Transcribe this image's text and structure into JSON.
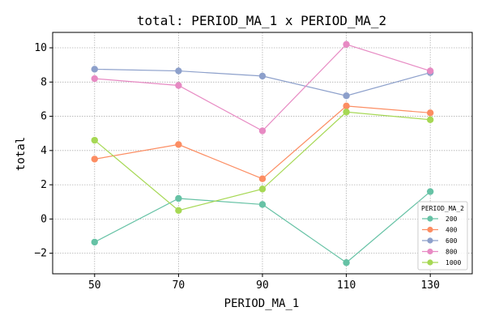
{
  "chart_data": {
    "type": "line",
    "title": "total: PERIOD_MA_1 x PERIOD_MA_2",
    "xlabel": "PERIOD_MA_1",
    "ylabel": "total",
    "x": [
      50,
      70,
      90,
      110,
      130
    ],
    "x_tick_labels": [
      "50",
      "70",
      "90",
      "110",
      "130"
    ],
    "xlim": [
      40,
      140
    ],
    "ylim": [
      -3.2,
      10.9
    ],
    "y_ticks": [
      -2,
      0,
      2,
      4,
      6,
      8,
      10
    ],
    "y_tick_labels": [
      "−2",
      "0",
      "2",
      "4",
      "6",
      "8",
      "10"
    ],
    "grid": true,
    "legend_title": "PERIOD_MA_2",
    "legend_position": "bottom-right",
    "series": [
      {
        "name": "200",
        "color": "#66c2a5",
        "values": [
          -1.35,
          1.2,
          0.85,
          -2.55,
          1.6
        ]
      },
      {
        "name": "400",
        "color": "#fc8d62",
        "values": [
          3.5,
          4.35,
          2.35,
          6.6,
          6.2
        ]
      },
      {
        "name": "600",
        "color": "#8da0cb",
        "values": [
          8.75,
          8.65,
          8.35,
          7.2,
          8.55
        ]
      },
      {
        "name": "800",
        "color": "#e78ac3",
        "values": [
          8.2,
          7.8,
          5.15,
          10.2,
          8.65
        ]
      },
      {
        "name": "1000",
        "color": "#a6d854",
        "values": [
          4.6,
          0.5,
          1.75,
          6.25,
          5.8
        ]
      }
    ]
  }
}
